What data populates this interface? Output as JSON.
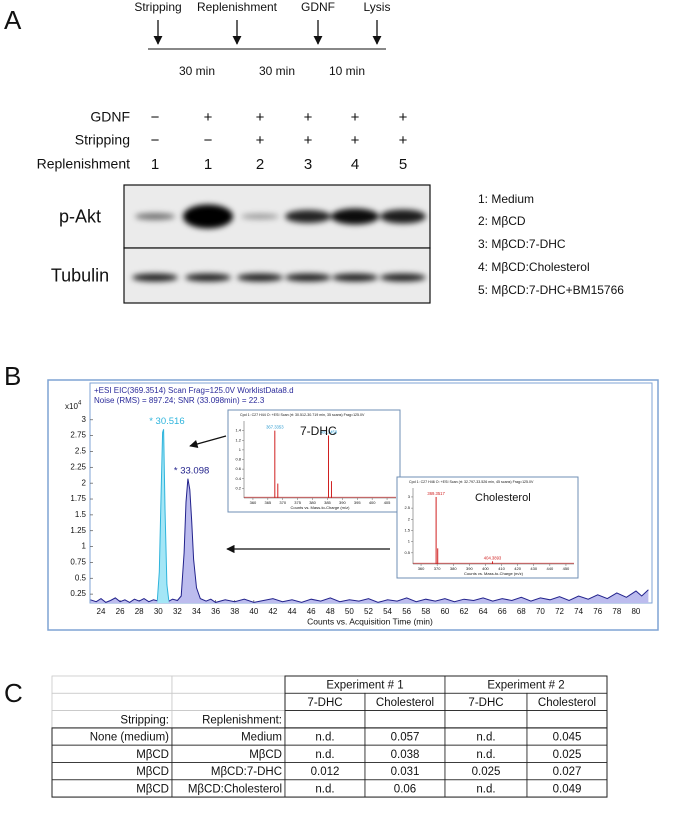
{
  "panel_labels": [
    "A",
    "B",
    "C"
  ],
  "panel_a": {
    "timeline": {
      "events": [
        "Stripping",
        "Replenishment",
        "GDNF",
        "Lysis"
      ],
      "intervals": [
        "30 min",
        "30 min",
        "10 min"
      ]
    },
    "conditions": {
      "row_labels": [
        "GDNF",
        "Stripping",
        "Replenishment"
      ],
      "rows": [
        [
          "−",
          "+",
          "+",
          "+",
          "+",
          "+"
        ],
        [
          "−",
          "−",
          "+",
          "+",
          "+",
          "+"
        ],
        [
          "1",
          "1",
          "2",
          "3",
          "4",
          "5"
        ]
      ]
    },
    "blots": [
      "p-Akt",
      "Tubulin"
    ],
    "legend": [
      "1: Medium",
      "2: MβCD",
      "3: MβCD:7-DHC",
      "4: MβCD:Cholesterol",
      "5: MβCD:7-DHC+BM15766"
    ]
  },
  "panel_b": {
    "header": [
      "+ESI EIC(369.3514) Scan Frag=125.0V WorklistData8.d",
      "Noise (RMS) = 897.24; SNR (33.098min) = 22.3"
    ],
    "multiplier": [
      "x10",
      "4"
    ],
    "chart": {
      "type": "line",
      "xlabel": "Counts vs. Acquisition Time (min)",
      "xlim": [
        22.85,
        81.68
      ],
      "xticks": [
        24,
        26,
        28,
        30,
        32,
        34,
        36,
        38,
        40,
        42,
        44,
        46,
        48,
        50,
        52,
        54,
        56,
        58,
        60,
        62,
        64,
        66,
        68,
        70,
        72,
        74,
        76,
        78,
        80
      ],
      "ylim": [
        0.11,
        3.58
      ],
      "yticks": [
        0.25,
        0.5,
        0.75,
        1,
        1.25,
        1.5,
        1.75,
        2,
        2.25,
        2.5,
        2.75,
        3
      ],
      "series": [
        {
          "color": "#22228c",
          "fill": "#bcbcee",
          "x": [
            22.9,
            23.5,
            24,
            24.5,
            25,
            25.5,
            26,
            26.5,
            27,
            27.5,
            28,
            28.5,
            29,
            29.5,
            30,
            30.5,
            31,
            31.5,
            32,
            32.4,
            32.7,
            32.9,
            33.1,
            33.3,
            33.5,
            33.7,
            34,
            34.4,
            35,
            35.5,
            36,
            37,
            38,
            39,
            40,
            41,
            42,
            43,
            44,
            45,
            46,
            47,
            48,
            49,
            50,
            51,
            52,
            53,
            54,
            55,
            56,
            57,
            58,
            59,
            60,
            61,
            62,
            63,
            64,
            65,
            66,
            67,
            68,
            69,
            70,
            71,
            72,
            73,
            74,
            75,
            76,
            77,
            78,
            79,
            80,
            80.6,
            81.3
          ],
          "values": [
            0.16,
            0.13,
            0.18,
            0.12,
            0.15,
            0.19,
            0.13,
            0.16,
            0.12,
            0.17,
            0.14,
            0.18,
            0.13,
            0.16,
            0.14,
            0.2,
            0.13,
            0.17,
            0.15,
            0.22,
            0.9,
            1.7,
            2.07,
            1.9,
            1.4,
            0.8,
            0.35,
            0.18,
            0.14,
            0.17,
            0.12,
            0.16,
            0.13,
            0.17,
            0.12,
            0.15,
            0.18,
            0.13,
            0.16,
            0.12,
            0.17,
            0.14,
            0.19,
            0.13,
            0.16,
            0.14,
            0.18,
            0.12,
            0.16,
            0.14,
            0.19,
            0.13,
            0.17,
            0.14,
            0.18,
            0.13,
            0.17,
            0.15,
            0.19,
            0.14,
            0.18,
            0.15,
            0.2,
            0.14,
            0.19,
            0.16,
            0.21,
            0.15,
            0.22,
            0.17,
            0.24,
            0.18,
            0.27,
            0.2,
            0.3,
            0.22,
            0.32
          ]
        },
        {
          "color": "#2eb4dc",
          "fill": "#a4e6f6",
          "x": [
            29.9,
            30.1,
            30.3,
            30.45,
            30.55,
            30.7,
            30.9,
            31.1
          ],
          "values": [
            0.15,
            0.6,
            1.9,
            2.8,
            2.85,
            1.6,
            0.4,
            0.15
          ]
        }
      ],
      "peak_labels": [
        {
          "x": 30.516,
          "value": 2.85,
          "label": "* 30.516",
          "color": "#2eb4dc"
        },
        {
          "x": 33.098,
          "value": 2.07,
          "label": "* 33.098",
          "color": "#22228c"
        }
      ]
    },
    "insets": [
      {
        "name": "7-DHC",
        "title": "Cpd 1: C27 H44 O: +ESI Scan (rt: 30.512-30.719 min, 35 scans) Frag=125.0V",
        "xlabel": "Counts vs. Mass-to-Charge (m/z)",
        "color": "#d02020",
        "label_color": "#2a9ad0",
        "xlim": [
          357,
          408
        ],
        "xticks": [
          360,
          365,
          370,
          375,
          380,
          385,
          390,
          395,
          400,
          405
        ],
        "ylim": [
          0,
          1.6
        ],
        "yticks": [
          0.2,
          0.4,
          0.6,
          0.8,
          1,
          1.2,
          1.4
        ],
        "peaks": [
          {
            "x": 367.34,
            "value": 1.4,
            "label": "367.3353"
          },
          {
            "x": 368.34,
            "value": 0.3
          },
          {
            "x": 385.35,
            "value": 1.3,
            "label": "385.3459"
          },
          {
            "x": 386.35,
            "value": 0.35
          }
        ]
      },
      {
        "name": "Cholesterol",
        "title": "Cpd 1: C27 H46 O: +ESI Scan (rt: 32.797-33.526 min, 45 scans) Frag=125.0V",
        "xlabel": "Counts vs. Mass-to-Charge (m/z)",
        "color": "#d02020",
        "label_color": "#d02020",
        "xlim": [
          355,
          455
        ],
        "xticks": [
          360,
          370,
          380,
          390,
          400,
          410,
          420,
          430,
          440,
          450
        ],
        "ylim": [
          0,
          3.4
        ],
        "yticks": [
          0.5,
          1,
          1.5,
          2,
          2.5,
          3
        ],
        "peaks": [
          {
            "x": 369.35,
            "value": 3.0,
            "label": "369.3517"
          },
          {
            "x": 370.35,
            "value": 0.7
          },
          {
            "x": 404.39,
            "value": 0.12,
            "label": "404.3893"
          }
        ]
      }
    ]
  },
  "panel_c": {
    "table": {
      "experiments": [
        "Experiment # 1",
        "Experiment # 2"
      ],
      "subheaders": [
        "7-DHC",
        "Cholesterol",
        "7-DHC",
        "Cholesterol"
      ],
      "row_headers": [
        "Stripping:",
        "Replenishment:"
      ],
      "rows": [
        [
          "None (medium)",
          "Medium",
          "n.d.",
          "0.057",
          "n.d.",
          "0.045"
        ],
        [
          "MβCD",
          "MβCD",
          "n.d.",
          "0.038",
          "n.d.",
          "0.025"
        ],
        [
          "MβCD",
          "MβCD:7-DHC",
          "0.012",
          "0.031",
          "0.025",
          "0.027"
        ],
        [
          "MβCD",
          "MβCD:Cholesterol",
          "n.d.",
          "0.06",
          "n.d.",
          "0.049"
        ]
      ]
    }
  }
}
